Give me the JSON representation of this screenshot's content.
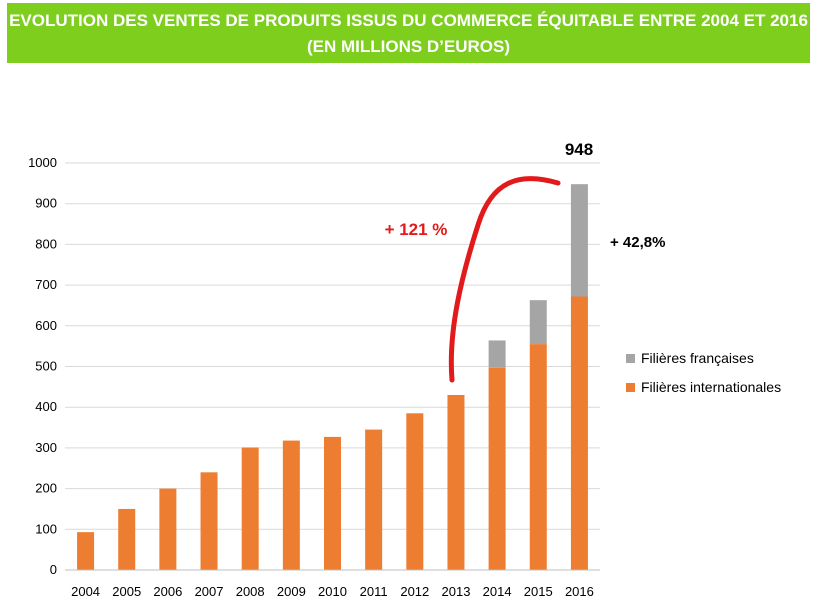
{
  "header": {
    "title_line1": "EVOLUTION DES VENTES DE PRODUITS ISSUS DU COMMERCE ÉQUITABLE ENTRE 2004 ET 2016",
    "title_line2": "(EN MILLIONS D’EUROS)"
  },
  "colors": {
    "banner": "#7dce1d",
    "internationales": "#ed7d31",
    "francaises": "#a5a5a5",
    "annotation_red": "#e31a1c"
  },
  "annotations": {
    "total_2016": "948",
    "growth_2013_2016": "+ 121 %",
    "growth_francaises": "+ 42,8%"
  },
  "chart_data": {
    "type": "bar",
    "stacked": true,
    "categories": [
      "2004",
      "2005",
      "2006",
      "2007",
      "2008",
      "2009",
      "2010",
      "2011",
      "2012",
      "2013",
      "2014",
      "2015",
      "2016"
    ],
    "series": [
      {
        "name": "Filières internationales",
        "color": "#ed7d31",
        "values": [
          93,
          150,
          200,
          240,
          301,
          318,
          327,
          345,
          385,
          430,
          497,
          555,
          672
        ]
      },
      {
        "name": "Filières françaises",
        "color": "#a5a5a5",
        "values": [
          0,
          0,
          0,
          0,
          0,
          0,
          0,
          0,
          0,
          0,
          67,
          108,
          276
        ]
      }
    ],
    "ylim": [
      0,
      1000
    ],
    "yticks": [
      0,
      100,
      200,
      300,
      400,
      500,
      600,
      700,
      800,
      900,
      1000
    ],
    "grid": true,
    "legend_position": "right"
  }
}
